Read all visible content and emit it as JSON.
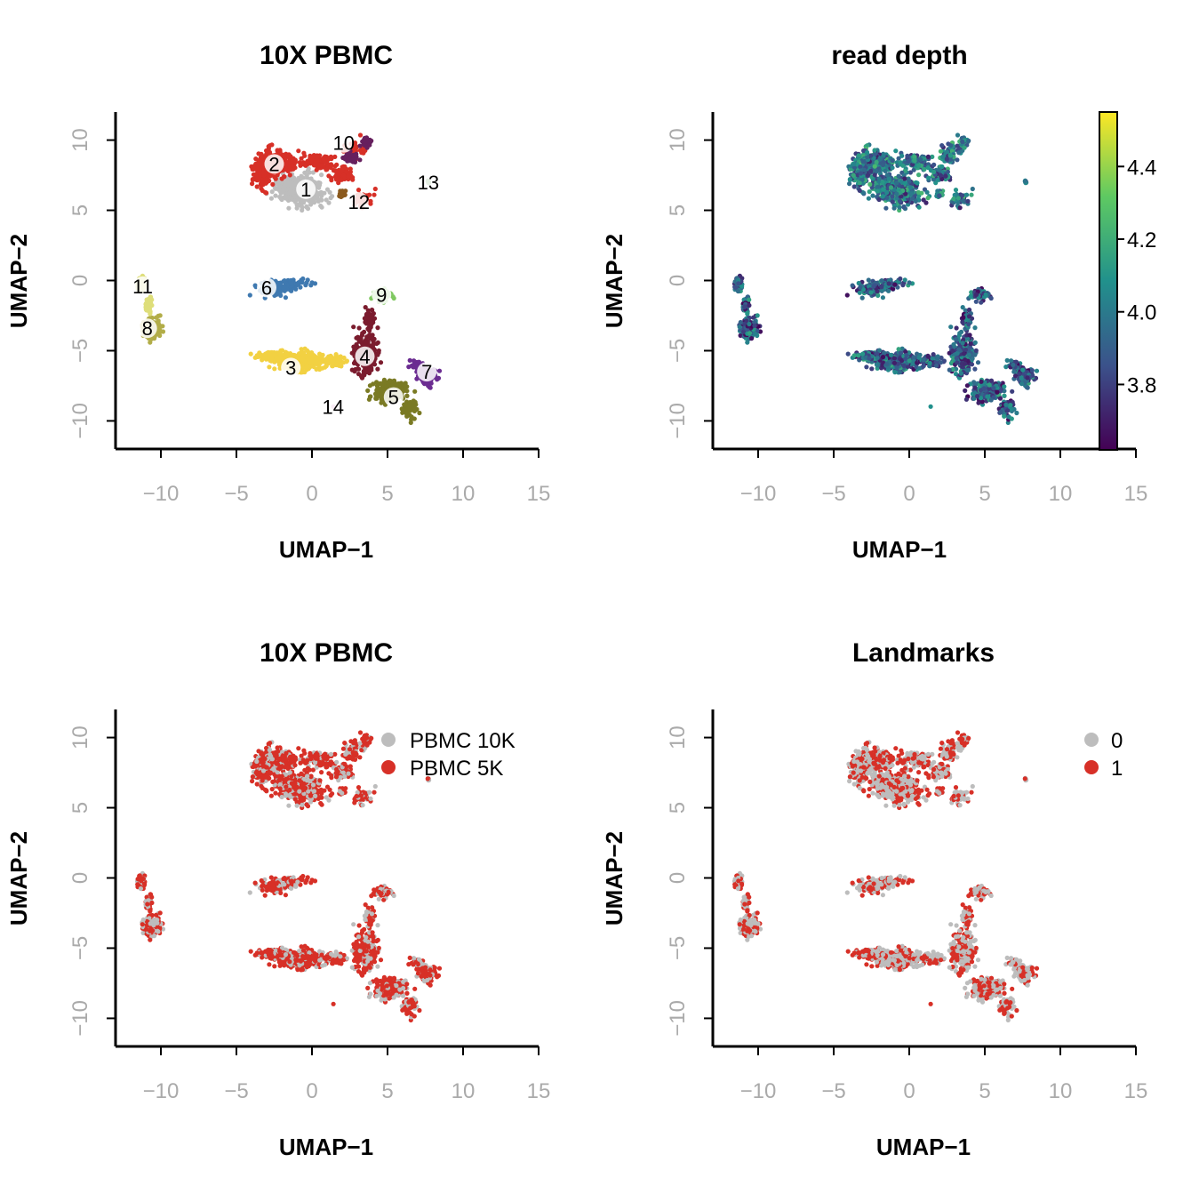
{
  "chart_data": [
    {
      "type": "scatter",
      "title": "10X PBMC",
      "xlabel": "UMAP−1",
      "ylabel": "UMAP−2",
      "xlim": [
        -13,
        15
      ],
      "ylim": [
        -12,
        12
      ],
      "xticks": [
        -10,
        -5,
        0,
        5,
        10,
        15
      ],
      "yticks": [
        -10,
        -5,
        0,
        5,
        10
      ],
      "xtick_labels": [
        "−10",
        "−5",
        "0",
        "5",
        "10",
        "15"
      ],
      "ytick_labels": [
        "−10",
        "−5",
        "0",
        "5",
        "10"
      ],
      "color_by": "cluster",
      "clusters": [
        {
          "label": "1",
          "color": "#bdbdbd",
          "cx": -0.6,
          "cy": 6.4,
          "label_x": -0.4,
          "label_y": 6.5
        },
        {
          "label": "2",
          "color": "#d73027",
          "cx": -2.0,
          "cy": 8.2,
          "label_x": -2.5,
          "label_y": 8.3
        },
        {
          "label": "3",
          "color": "#f2d142",
          "cx": -1.0,
          "cy": -5.8,
          "label_x": -1.4,
          "label_y": -6.2
        },
        {
          "label": "4",
          "color": "#7b1c2e",
          "cx": 3.4,
          "cy": -4.7,
          "label_x": 3.5,
          "label_y": -5.4
        },
        {
          "label": "5",
          "color": "#7a7a24",
          "cx": 5.6,
          "cy": -8.3,
          "label_x": 5.4,
          "label_y": -8.3
        },
        {
          "label": "6",
          "color": "#3f79b0",
          "cx": -2.3,
          "cy": -0.6,
          "label_x": -3.0,
          "label_y": -0.5
        },
        {
          "label": "7",
          "color": "#6b2c91",
          "cx": 7.6,
          "cy": -6.8,
          "label_x": 7.6,
          "label_y": -6.5
        },
        {
          "label": "8",
          "color": "#b2ad48",
          "cx": -10.6,
          "cy": -3.4,
          "label_x": -10.9,
          "label_y": -3.4
        },
        {
          "label": "9",
          "color": "#7fc860",
          "cx": 4.8,
          "cy": -1.0,
          "label_x": 4.6,
          "label_y": -1.0
        },
        {
          "label": "10",
          "color": "#66205e",
          "cx": 2.5,
          "cy": 9.0,
          "label_x": 2.1,
          "label_y": 9.8
        },
        {
          "label": "11",
          "color": "#dede7a",
          "cx": -11.0,
          "cy": -0.8,
          "label_x": -11.2,
          "label_y": -0.4
        },
        {
          "label": "12",
          "color": "#8b5a1e",
          "cx": 2.0,
          "cy": 6.1,
          "label_x": 3.1,
          "label_y": 5.6
        },
        {
          "label": "13",
          "color": "#4a8d3c",
          "cx": 7.7,
          "cy": 7.0,
          "label_x": 7.7,
          "label_y": 7.0
        },
        {
          "label": "14",
          "color": "#c97ab4",
          "cx": 1.4,
          "cy": -9.0,
          "label_x": 1.4,
          "label_y": -9.0
        }
      ]
    },
    {
      "type": "scatter",
      "title": "read depth",
      "xlabel": "UMAP−1",
      "ylabel": "UMAP−2",
      "xlim": [
        -13,
        15
      ],
      "ylim": [
        -12,
        12
      ],
      "xticks": [
        -10,
        -5,
        0,
        5,
        10,
        15
      ],
      "yticks": [
        -10,
        -5,
        0,
        5,
        10
      ],
      "xtick_labels": [
        "−10",
        "−5",
        "0",
        "5",
        "10",
        "15"
      ],
      "ytick_labels": [
        "−10",
        "−5",
        "0",
        "5",
        "10"
      ],
      "color_by": "read depth (continuous, viridis)",
      "colorbar": {
        "min": 3.62,
        "max": 4.55,
        "ticks": [
          3.8,
          4.0,
          4.2,
          4.4
        ],
        "tick_labels": [
          "3.8",
          "4.0",
          "4.2",
          "4.4"
        ],
        "colors": [
          "#440154",
          "#3b528b",
          "#21918c",
          "#5ec962",
          "#fde725"
        ]
      }
    },
    {
      "type": "scatter",
      "title": "10X PBMC",
      "xlabel": "UMAP−1",
      "ylabel": "UMAP−2",
      "xlim": [
        -13,
        15
      ],
      "ylim": [
        -12,
        12
      ],
      "xticks": [
        -10,
        -5,
        0,
        5,
        10,
        15
      ],
      "yticks": [
        -10,
        -5,
        0,
        5,
        10
      ],
      "xtick_labels": [
        "−10",
        "−5",
        "0",
        "5",
        "10",
        "15"
      ],
      "ytick_labels": [
        "−10",
        "−5",
        "0",
        "5",
        "10"
      ],
      "color_by": "dataset",
      "legend_position": "top-right",
      "series": [
        {
          "name": "PBMC 10K",
          "color": "#bdbdbd"
        },
        {
          "name": "PBMC 5K",
          "color": "#d73027"
        }
      ]
    },
    {
      "type": "scatter",
      "title": "Landmarks",
      "xlabel": "UMAP−1",
      "ylabel": "UMAP−2",
      "xlim": [
        -13,
        15
      ],
      "ylim": [
        -12,
        12
      ],
      "xticks": [
        -10,
        -5,
        0,
        5,
        10,
        15
      ],
      "yticks": [
        -10,
        -5,
        0,
        5,
        10
      ],
      "xtick_labels": [
        "−10",
        "−5",
        "0",
        "5",
        "10",
        "15"
      ],
      "ytick_labels": [
        "−10",
        "−5",
        "0",
        "5",
        "10"
      ],
      "color_by": "landmark",
      "legend_position": "top-right",
      "series": [
        {
          "name": "0",
          "color": "#bdbdbd"
        },
        {
          "name": "1",
          "color": "#d73027"
        }
      ]
    }
  ]
}
